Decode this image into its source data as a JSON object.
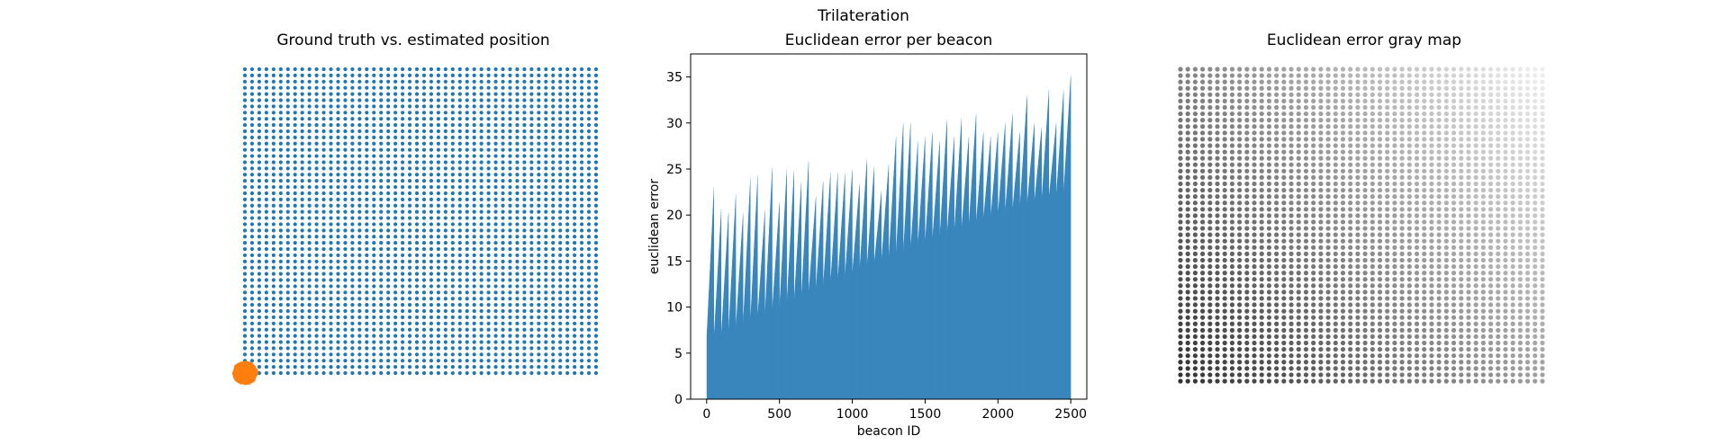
{
  "suptitle": "Trilateration",
  "colors": {
    "ground_truth": "#1f77b4",
    "estimated": "#ff7f0e",
    "bars": "#1f77b4",
    "axes": "#000000"
  },
  "chart_data": [
    {
      "type": "scatter",
      "title": "Ground truth vs. estimated position",
      "axes_visible": false,
      "grid": false,
      "series": [
        {
          "role": "ground truth",
          "color": "#1f77b4",
          "grid_cols": 50,
          "grid_rows": 50
        },
        {
          "role": "estimated",
          "color": "#ff7f0e",
          "cluster": "bottom-left corner"
        }
      ]
    },
    {
      "type": "bar",
      "title": "Euclidean error per beacon",
      "xlabel": "beacon ID",
      "ylabel": "euclidean error",
      "xlim": [
        -110,
        2610
      ],
      "ylim": [
        0,
        37.5
      ],
      "xticks": [
        0,
        500,
        1000,
        1500,
        2000,
        2500
      ],
      "yticks": [
        0,
        5,
        10,
        15,
        20,
        25,
        30,
        35
      ],
      "bar_count": 2500,
      "color": "#1f77b4",
      "row_peaks": [
        23.0,
        20.6,
        20.3,
        22.2,
        20.2,
        24.0,
        24.3,
        20.5,
        25.1,
        21.4,
        24.9,
        24.8,
        23.6,
        25.9,
        22.0,
        23.7,
        24.6,
        24.6,
        24.5,
        24.9,
        23.4,
        26.0,
        25.2,
        22.6,
        25.5,
        28.5,
        30.0,
        30.0,
        28.0,
        28.5,
        29.0,
        28.0,
        30.3,
        28.5,
        30.5,
        28.5,
        31.0,
        29.0,
        28.5,
        29.0,
        30.0,
        31.0,
        29.0,
        33.0,
        30.0,
        29.5,
        33.6,
        30.0,
        33.5,
        35.2
      ],
      "row_min_start": [
        7.0,
        7.0,
        7.2,
        7.6,
        8.0,
        8.4,
        8.8,
        9.2,
        9.5,
        9.9,
        10.3,
        10.7,
        11.0,
        11.4,
        11.8,
        12.1,
        12.5,
        12.9,
        13.2,
        13.6,
        13.9,
        14.3,
        14.6,
        15.0,
        15.3,
        15.6,
        16.0,
        16.3,
        16.6,
        17.0,
        17.3,
        17.6,
        17.9,
        18.2,
        18.5,
        18.8,
        19.1,
        19.4,
        19.7,
        20.0,
        20.3,
        20.6,
        20.8,
        21.1,
        21.4,
        21.6,
        21.9,
        22.1,
        22.4,
        22.6
      ]
    },
    {
      "type": "scatter",
      "title": "Euclidean error gray map",
      "axes_visible": false,
      "grid": false,
      "grid_cols": 50,
      "grid_rows": 50,
      "colormap": "gray",
      "value_range": [
        0,
        35.2
      ],
      "color_encodes": "euclidean error"
    }
  ]
}
